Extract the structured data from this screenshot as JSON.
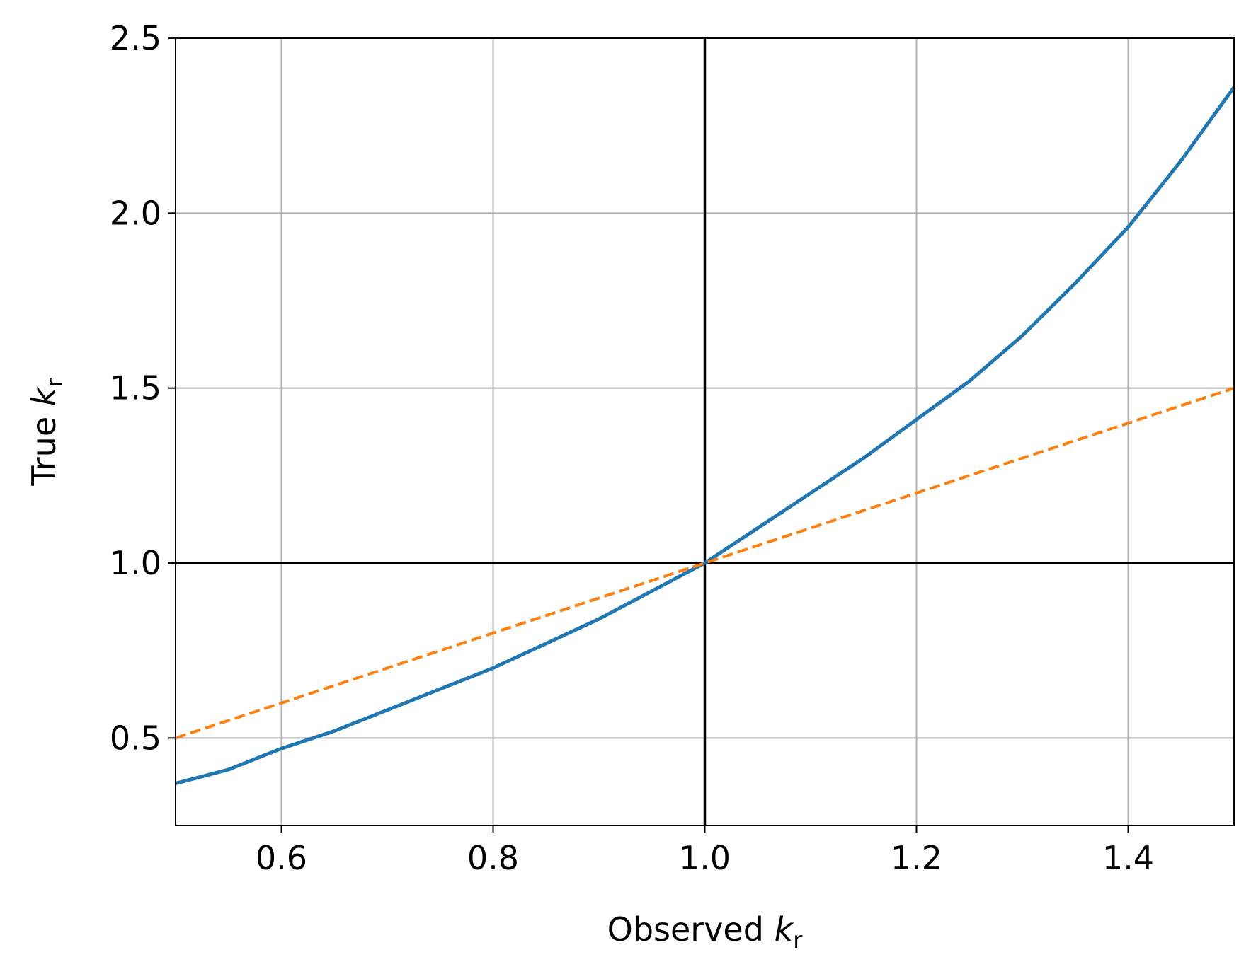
{
  "chart_data": {
    "type": "line",
    "title": "",
    "xlabel": {
      "prefix": "Observed ",
      "symbol": "k",
      "subscript": "r"
    },
    "ylabel": {
      "prefix": "True ",
      "symbol": "k",
      "subscript": "r"
    },
    "xlim": [
      0.5,
      1.5
    ],
    "ylim": [
      0.25,
      2.5
    ],
    "xticks": [
      0.6,
      0.8,
      1.0,
      1.2,
      1.4
    ],
    "xtick_labels": [
      "0.6",
      "0.8",
      "1.0",
      "1.2",
      "1.4"
    ],
    "yticks": [
      0.5,
      1.0,
      1.5,
      2.0,
      2.5
    ],
    "ytick_labels": [
      "0.5",
      "1.0",
      "1.5",
      "2.0",
      "2.5"
    ],
    "grid": true,
    "reference_lines": {
      "vertical_x": 1.0,
      "horizontal_y": 1.0,
      "color": "#000000"
    },
    "series": [
      {
        "style": "solid",
        "color": "#1f77b4",
        "x": [
          0.5,
          0.55,
          0.6,
          0.65,
          0.7,
          0.75,
          0.8,
          0.85,
          0.9,
          0.95,
          1.0,
          1.05,
          1.1,
          1.15,
          1.2,
          1.25,
          1.3,
          1.35,
          1.4,
          1.45,
          1.5
        ],
        "y": [
          0.37,
          0.41,
          0.47,
          0.52,
          0.58,
          0.64,
          0.7,
          0.77,
          0.84,
          0.92,
          1.0,
          1.1,
          1.2,
          1.3,
          1.41,
          1.52,
          1.65,
          1.8,
          1.96,
          2.15,
          2.36
        ]
      },
      {
        "style": "dashed",
        "color": "#ff7f0e",
        "x": [
          0.5,
          1.5
        ],
        "y": [
          0.5,
          1.5
        ]
      }
    ]
  }
}
